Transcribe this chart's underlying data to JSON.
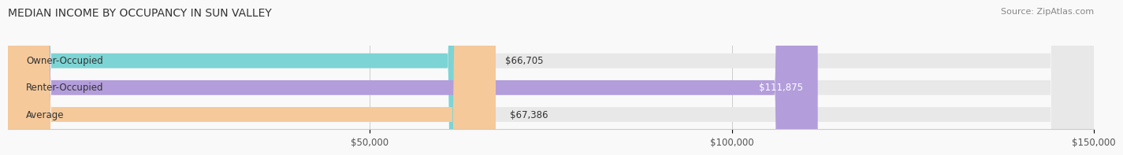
{
  "title": "MEDIAN INCOME BY OCCUPANCY IN SUN VALLEY",
  "source": "Source: ZipAtlas.com",
  "categories": [
    "Owner-Occupied",
    "Renter-Occupied",
    "Average"
  ],
  "values": [
    66705,
    111875,
    67386
  ],
  "bar_colors": [
    "#7dd4d4",
    "#b39ddb",
    "#f5c99a"
  ],
  "bar_bg_color": "#e8e8e8",
  "value_labels": [
    "$66,705",
    "$111,875",
    "$67,386"
  ],
  "xlim": [
    0,
    150000
  ],
  "xticks": [
    50000,
    100000,
    150000
  ],
  "xtick_labels": [
    "$50,000",
    "$100,000",
    "$150,000"
  ],
  "title_fontsize": 10,
  "label_fontsize": 8.5,
  "source_fontsize": 8,
  "bar_height": 0.55,
  "background_color": "#f9f9f9"
}
